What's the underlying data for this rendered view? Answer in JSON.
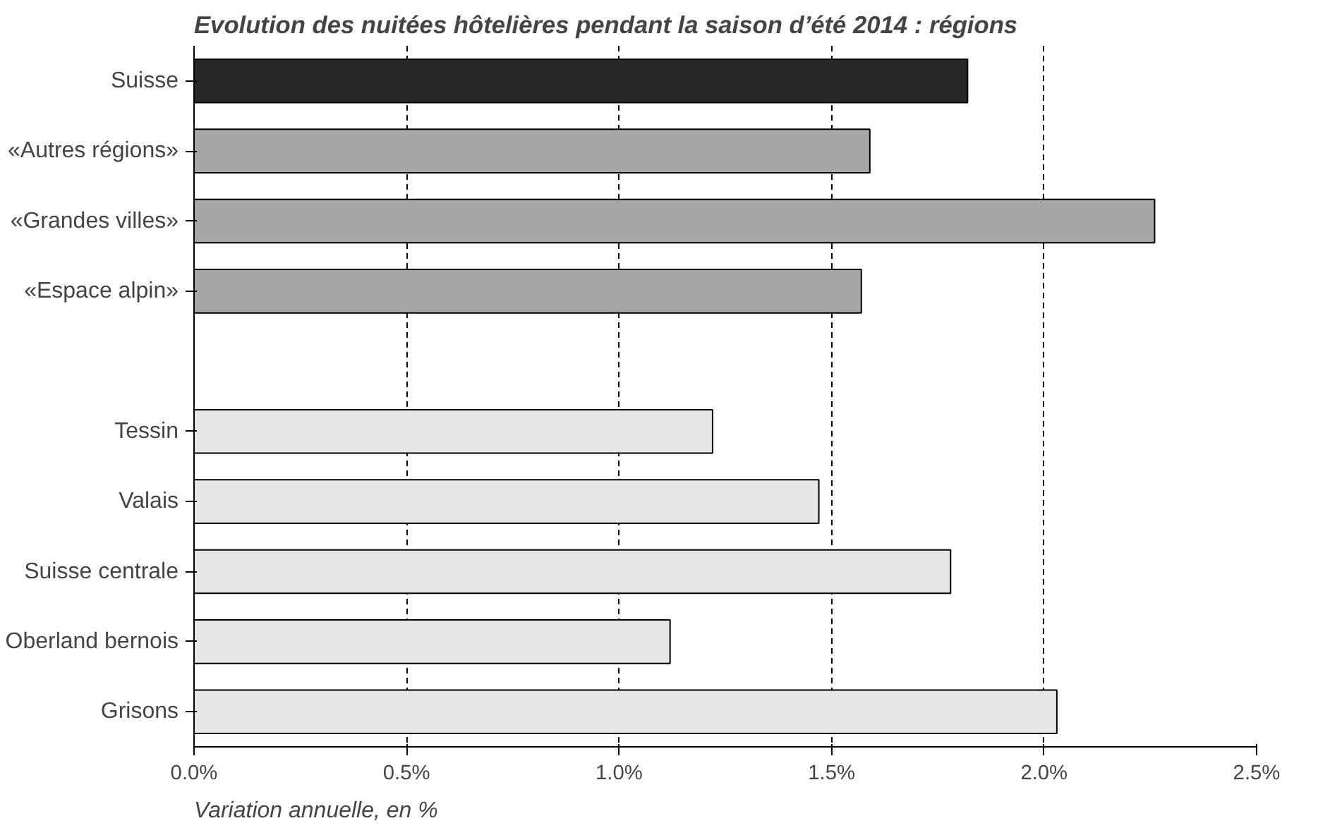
{
  "chart_data": {
    "type": "bar",
    "orientation": "horizontal",
    "title": "Evolution des nuitées hôtelières pendant la saison d’été 2014 : régions",
    "categories": [
      "Suisse",
      "«Autres régions»",
      "«Grandes villes»",
      "«Espace alpin»",
      null,
      "Tessin",
      "Valais",
      "Suisse centrale",
      "Oberland bernois",
      "Grisons"
    ],
    "values": [
      1.82,
      1.59,
      2.26,
      1.57,
      null,
      1.22,
      1.47,
      1.78,
      1.12,
      2.03
    ],
    "colors": [
      "#262626",
      "#a6a6a6",
      "#a6a6a6",
      "#a6a6a6",
      "#ffffff",
      "#e6e6e6",
      "#e6e6e6",
      "#e6e6e6",
      "#e6e6e6",
      "#e6e6e6"
    ],
    "xlim": [
      0,
      2.5
    ],
    "xticks": [
      {
        "value": 0,
        "label": "0.0%"
      },
      {
        "value": 0.5,
        "label": "0.5%"
      },
      {
        "value": 1.0,
        "label": "1.0%"
      },
      {
        "value": 1.5,
        "label": "1.5%"
      },
      {
        "value": 2.0,
        "label": "2.0%"
      },
      {
        "value": 2.5,
        "label": "2.5%"
      }
    ],
    "grid": "x",
    "annotations": [
      "Variation annuelle, en %"
    ]
  }
}
